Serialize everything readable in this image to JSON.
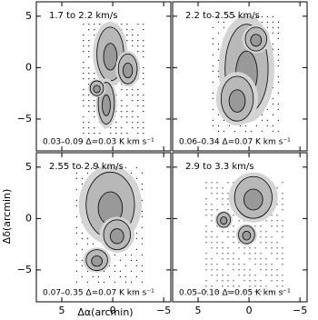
{
  "chart_data": [
    {
      "type": "contour",
      "title": "1.7 to 2.2 km/s",
      "subtitle": "0.03–0.09 Δ=0.03 K km s⁻¹",
      "xlim": [
        7.5,
        -5.7
      ],
      "ylim": [
        -8.1,
        6.4
      ],
      "xticks": [
        5,
        0,
        {
          "value": -5,
          "label": "−5"
        }
      ],
      "yticks": [
        5,
        0,
        {
          "value": -5,
          "label": "−5"
        }
      ]
    },
    {
      "type": "contour",
      "title": "2.2 to 2.55 km/s",
      "subtitle": "0.06–0.34 Δ=0.07 K km s⁻¹",
      "xlim": [
        7.5,
        -5.7
      ],
      "ylim": [
        -8.1,
        6.4
      ],
      "xticks": [
        5,
        0,
        {
          "value": -5,
          "label": "−5"
        }
      ],
      "yticks": [
        5,
        0,
        {
          "value": -5,
          "label": "−5"
        }
      ]
    },
    {
      "type": "contour",
      "title": "2.55 to 2.9 km/s",
      "subtitle": "0.07–0.35 Δ=0.07 K km s⁻¹",
      "xlabel": "Δα(arcmin)",
      "ylabel": "Δδ(arcmin)",
      "xlim": [
        7.5,
        -5.7
      ],
      "ylim": [
        -8.1,
        6.4
      ],
      "xticks": [
        5,
        0,
        {
          "value": -5,
          "label": "−5"
        }
      ],
      "yticks": [
        5,
        0,
        {
          "value": -5,
          "label": "−5"
        }
      ]
    },
    {
      "type": "contour",
      "title": "2.9 to 3.3 km/s",
      "subtitle": "0.05–0.10 Δ=0.05 K km s⁻¹",
      "xlim": [
        7.5,
        -5.7
      ],
      "ylim": [
        -8.1,
        6.4
      ],
      "xticks": [
        5,
        0,
        {
          "value": -5,
          "label": "−5"
        }
      ],
      "yticks": [
        5,
        0,
        {
          "value": -5,
          "label": "−5"
        }
      ]
    }
  ]
}
